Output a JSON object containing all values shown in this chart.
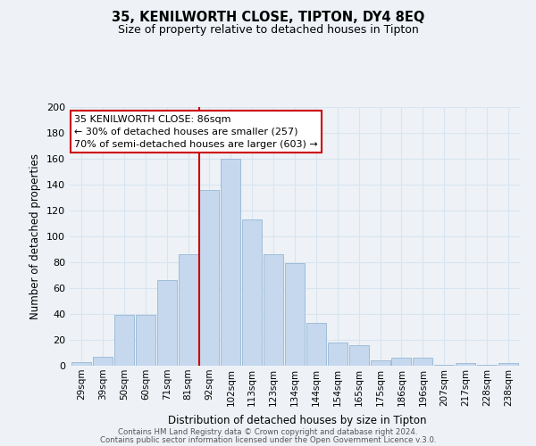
{
  "title": "35, KENILWORTH CLOSE, TIPTON, DY4 8EQ",
  "subtitle": "Size of property relative to detached houses in Tipton",
  "xlabel": "Distribution of detached houses by size in Tipton",
  "ylabel": "Number of detached properties",
  "bar_labels": [
    "29sqm",
    "39sqm",
    "50sqm",
    "60sqm",
    "71sqm",
    "81sqm",
    "92sqm",
    "102sqm",
    "113sqm",
    "123sqm",
    "134sqm",
    "144sqm",
    "154sqm",
    "165sqm",
    "175sqm",
    "186sqm",
    "196sqm",
    "207sqm",
    "217sqm",
    "228sqm",
    "238sqm"
  ],
  "bar_values": [
    3,
    7,
    39,
    39,
    66,
    86,
    136,
    160,
    113,
    86,
    79,
    33,
    18,
    16,
    4,
    6,
    6,
    1,
    2,
    1,
    2
  ],
  "bar_color": "#c5d8ee",
  "bar_edge_color": "#a0bcd8",
  "vline_x": 5.5,
  "vline_color": "#cc0000",
  "annotation_title": "35 KENILWORTH CLOSE: 86sqm",
  "annotation_line1": "← 30% of detached houses are smaller (257)",
  "annotation_line2": "70% of semi-detached houses are larger (603) →",
  "annotation_box_color": "#ffffff",
  "annotation_box_edge_color": "#cc0000",
  "ylim": [
    0,
    200
  ],
  "yticks": [
    0,
    20,
    40,
    60,
    80,
    100,
    120,
    140,
    160,
    180,
    200
  ],
  "footer1": "Contains HM Land Registry data © Crown copyright and database right 2024.",
  "footer2": "Contains public sector information licensed under the Open Government Licence v.3.0.",
  "grid_color": "#d8e4ef",
  "bg_color": "#eef2f7"
}
